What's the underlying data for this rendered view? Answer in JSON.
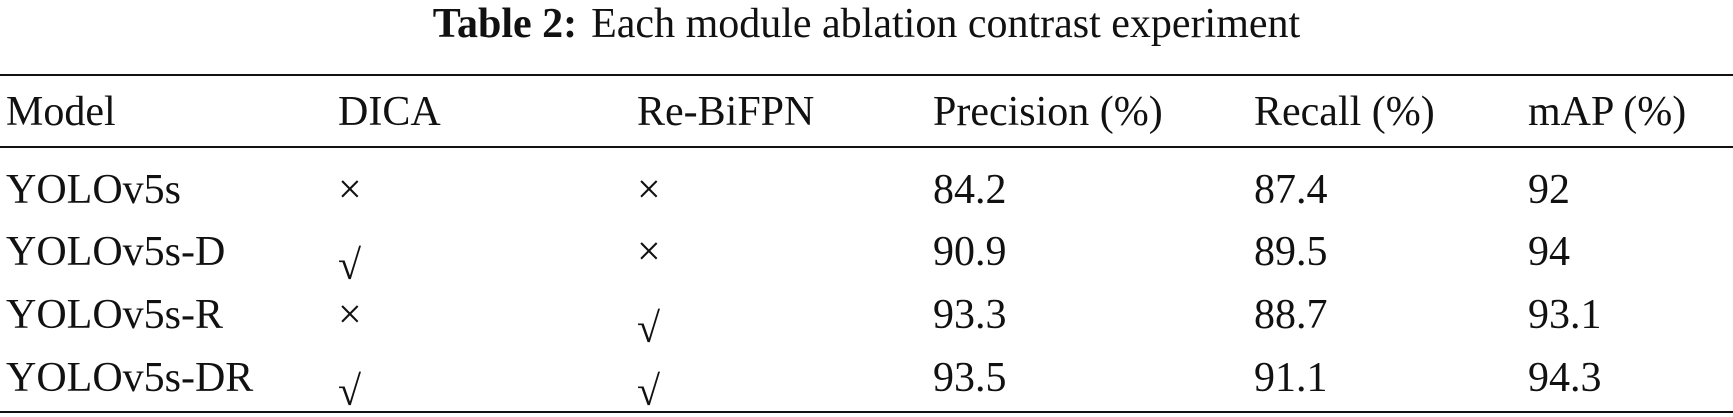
{
  "table": {
    "caption_label": "Table 2:",
    "caption": "Each module ablation contrast experiment",
    "header": [
      "Model",
      "DICA",
      "Re-BiFPN",
      "Precision (%)",
      "Recall (%)",
      "mAP (%)"
    ],
    "rows": [
      [
        "YOLOv5s",
        "×",
        "×",
        "84.2",
        "87.4",
        "92"
      ],
      [
        "YOLOv5s-D",
        "√",
        "×",
        "90.9",
        "89.5",
        "94"
      ],
      [
        "YOLOv5s-R",
        "×",
        "√",
        "93.3",
        "88.7",
        "93.1"
      ],
      [
        "YOLOv5s-DR",
        "√",
        "√",
        "93.5",
        "91.1",
        "94.3"
      ]
    ]
  }
}
